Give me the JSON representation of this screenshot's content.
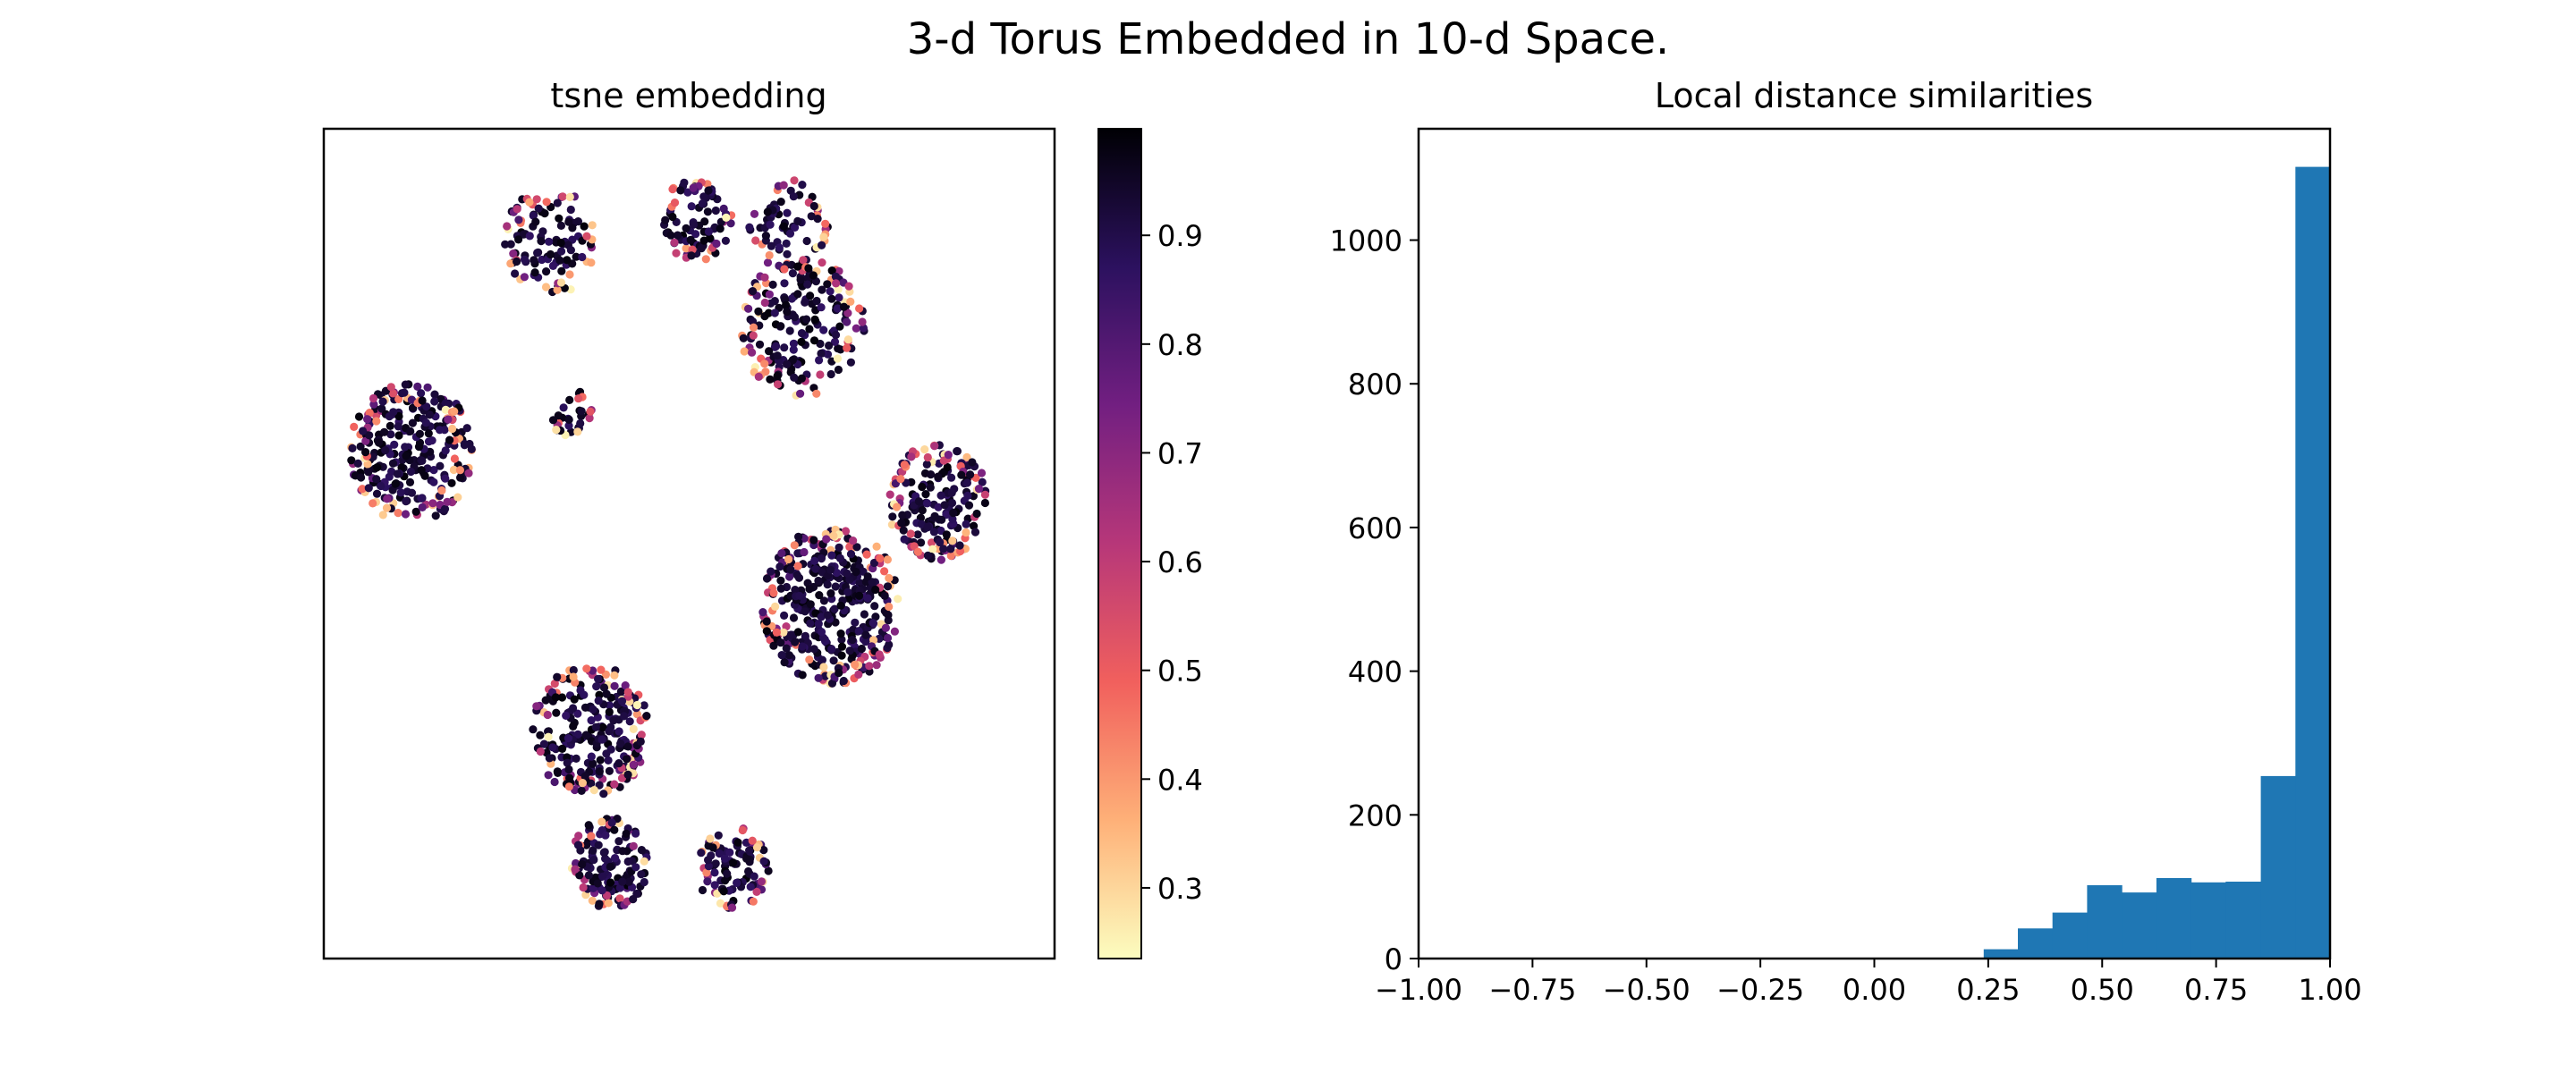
{
  "figure": {
    "suptitle": "3-d Torus Embedded in 10-d Space."
  },
  "chart_data": [
    {
      "type": "scatter",
      "title": "tsne embedding",
      "xlabel": "",
      "ylabel": "",
      "axes_visible": false,
      "grid": false,
      "colormap": "magma_r",
      "colorbar": {
        "ticks": [
          "0.3",
          "0.4",
          "0.5",
          "0.6",
          "0.7",
          "0.8",
          "0.9"
        ],
        "tick_values": [
          0.3,
          0.4,
          0.5,
          0.6,
          0.7,
          0.8,
          0.9
        ],
        "range": [
          0.235,
          0.998
        ],
        "gradient": [
          "#fcfdbf",
          "#feb078",
          "#f1605d",
          "#b73779",
          "#721f81",
          "#2c115f",
          "#000004"
        ]
      },
      "shape": "ring of point clusters (3-d torus projected to 2-d)",
      "xlim": [
        -1.0,
        1.0
      ],
      "ylim": [
        -1.0,
        1.0
      ],
      "clusters": [
        {
          "cx": -0.38,
          "cy": 0.73,
          "r": 0.13,
          "n": 110
        },
        {
          "cx": 0.02,
          "cy": 0.78,
          "r": 0.1,
          "n": 90
        },
        {
          "cx": 0.27,
          "cy": 0.77,
          "r": 0.11,
          "n": 70
        },
        {
          "cx": 0.31,
          "cy": 0.52,
          "r": 0.17,
          "n": 200
        },
        {
          "cx": -0.76,
          "cy": 0.22,
          "r": 0.17,
          "n": 270
        },
        {
          "cx": -0.32,
          "cy": 0.31,
          "r": 0.06,
          "n": 30
        },
        {
          "cx": 0.68,
          "cy": 0.1,
          "r": 0.14,
          "n": 190
        },
        {
          "cx": 0.39,
          "cy": -0.15,
          "r": 0.19,
          "n": 390
        },
        {
          "cx": -0.27,
          "cy": -0.45,
          "r": 0.16,
          "n": 250
        },
        {
          "cx": -0.22,
          "cy": -0.77,
          "r": 0.11,
          "n": 140
        },
        {
          "cx": 0.12,
          "cy": -0.78,
          "r": 0.1,
          "n": 100
        }
      ]
    },
    {
      "type": "bar",
      "title": "Local distance similarities",
      "xlabel": "",
      "ylabel": "",
      "xlim": [
        -1.0,
        1.0
      ],
      "ylim": [
        0,
        1155
      ],
      "grid": false,
      "bar_color": "#1f77b4",
      "bin_edges": [
        0.24,
        0.315,
        0.391,
        0.467,
        0.543,
        0.619,
        0.695,
        0.771,
        0.848,
        0.924,
        1.0
      ],
      "values": [
        13,
        42,
        64,
        102,
        92,
        112,
        106,
        107,
        254,
        1102
      ],
      "xticks": [
        "−1.00",
        "−0.75",
        "−0.50",
        "−0.25",
        "0.00",
        "0.25",
        "0.50",
        "0.75",
        "1.00"
      ],
      "xtick_values": [
        -1.0,
        -0.75,
        -0.5,
        -0.25,
        0.0,
        0.25,
        0.5,
        0.75,
        1.0
      ],
      "yticks": [
        "0",
        "200",
        "400",
        "600",
        "800",
        "1000"
      ],
      "ytick_values": [
        0,
        200,
        400,
        600,
        800,
        1000
      ]
    }
  ]
}
